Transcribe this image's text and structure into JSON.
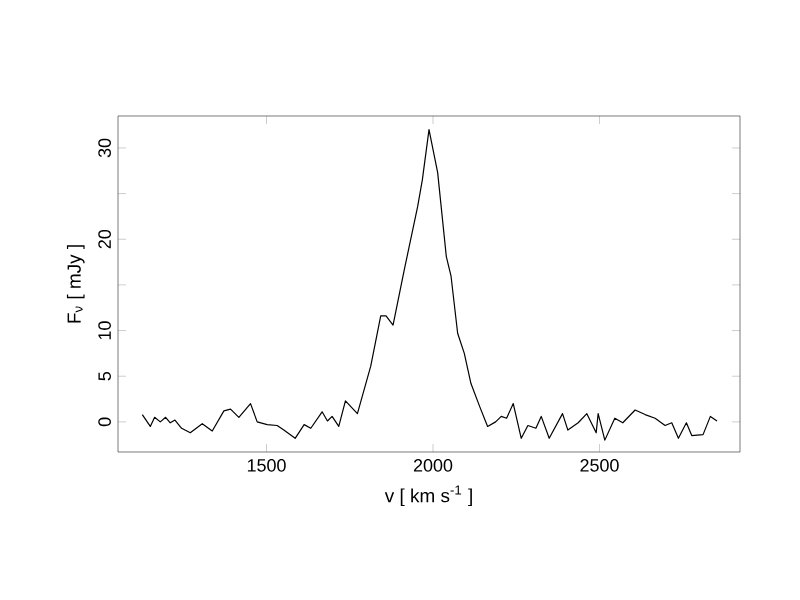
{
  "chart_data": {
    "type": "line",
    "xlabel": "v [ km s$^{-1}$ ]",
    "ylabel": "F$_{ν}$ [ mJy ]",
    "xlim": [
      1054,
      2922
    ],
    "ylim": [
      -3.3,
      33.5
    ],
    "xticks": [
      1500,
      2000,
      2500
    ],
    "yticks": [
      0,
      5,
      10,
      {
        "value": 15,
        "label": null
      },
      20,
      {
        "value": 25,
        "label": null
      },
      30
    ],
    "marker": "none",
    "line_style": "solid",
    "series": [
      {
        "color": "#000000",
        "x": [
          1127,
          1151,
          1164,
          1181,
          1197,
          1211,
          1225,
          1245,
          1271,
          1307,
          1337,
          1372,
          1392,
          1417,
          1452,
          1472,
          1502,
          1532,
          1552,
          1586,
          1613,
          1633,
          1667,
          1683,
          1697,
          1717,
          1737,
          1773,
          1813,
          1843,
          1859,
          1880,
          1914,
          1954,
          1968,
          1988,
          2014,
          2040,
          2054,
          2074,
          2094,
          2114,
          2140,
          2164,
          2188,
          2205,
          2221,
          2241,
          2265,
          2285,
          2309,
          2325,
          2349,
          2389,
          2405,
          2436,
          2462,
          2490,
          2496,
          2516,
          2546,
          2570,
          2607,
          2637,
          2667,
          2697,
          2717,
          2737,
          2761,
          2777,
          2811,
          2833,
          2853
        ],
        "values": [
          0.8,
          -0.5,
          0.5,
          0,
          0.5,
          -0.1,
          0.2,
          -0.7,
          -1.2,
          -0.2,
          -1,
          1.2,
          1.4,
          0.5,
          2,
          0,
          -0.3,
          -0.4,
          -0.9,
          -1.8,
          -0.3,
          -0.7,
          1.1,
          0.1,
          0.6,
          -0.5,
          2.3,
          0.9,
          6.1,
          11.6,
          11.6,
          10.6,
          16.7,
          23.6,
          26.5,
          32.0,
          27.3,
          18.1,
          16,
          9.7,
          7.5,
          4.2,
          1.7,
          -0.5,
          0,
          0.6,
          0.4,
          2,
          -1.8,
          -0.4,
          -0.7,
          0.6,
          -1.8,
          0.9,
          -0.9,
          -0.1,
          0.9,
          -1.2,
          0.9,
          -2,
          0.4,
          -0.1,
          1.3,
          0.8,
          0.4,
          -0.4,
          -0.1,
          -1.8,
          -0.1,
          -1.5,
          -1.4,
          0.6,
          0.1
        ]
      }
    ]
  }
}
